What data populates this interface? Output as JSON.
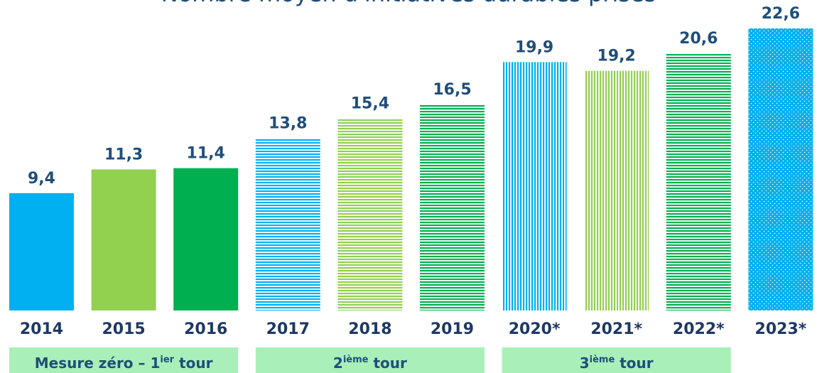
{
  "chart_data": {
    "type": "bar",
    "title": "Nombre moyen d'initiatives durables prises",
    "categories": [
      "2014",
      "2015",
      "2016",
      "2017",
      "2018",
      "2019",
      "2020*",
      "2021*",
      "2022*",
      "2023*"
    ],
    "values": [
      9.4,
      11.3,
      11.4,
      13.8,
      15.4,
      16.5,
      19.9,
      19.2,
      20.6,
      22.6
    ],
    "value_labels": [
      "9,4",
      "11,3",
      "11,4",
      "13,8",
      "15,4",
      "16,5",
      "19,9",
      "19,2",
      "20,6",
      "22,6"
    ],
    "colors": [
      "#00b0f0",
      "#92d050",
      "#00b050",
      "#00b0f0",
      "#92d050",
      "#00b050",
      "#00b0f0",
      "#92d050",
      "#00b050",
      "#00b0f0"
    ],
    "patterns": [
      "solid",
      "solid",
      "solid",
      "horizontal",
      "horizontal",
      "horizontal",
      "vertical",
      "vertical",
      "horizontal",
      "dots"
    ],
    "groups": [
      [
        "Mesure zéro – 1",
        "ier",
        " tour"
      ],
      [
        "2",
        "ième",
        " tour"
      ],
      [
        "3",
        "ième",
        " tour"
      ]
    ],
    "group_color": "#a9efb9"
  }
}
